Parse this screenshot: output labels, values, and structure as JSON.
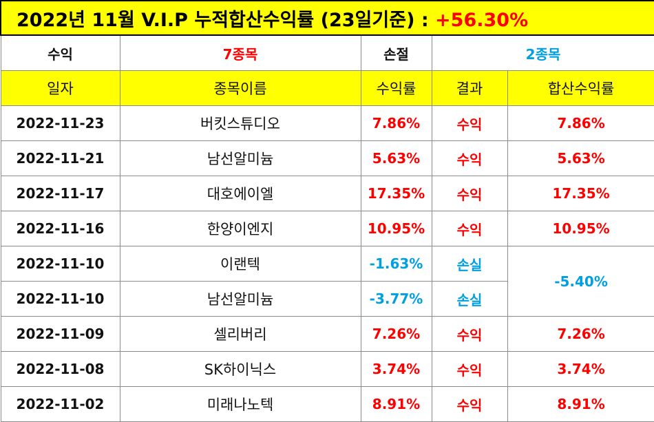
{
  "title": {
    "text": "2022년 11월 V.I.P 누적합산수익률 (23일기준)",
    "separator": ":",
    "value": "+56.30%"
  },
  "summary": {
    "profit_label": "수익",
    "profit_count": "7종목",
    "loss_label": "손절",
    "loss_count": "2종목"
  },
  "headers": {
    "date": "일자",
    "name": "종목이름",
    "return": "수익률",
    "result": "결과",
    "combined": "합산수익률"
  },
  "rows": [
    {
      "date": "2022-11-23",
      "name": "버킷스튜디오",
      "return": "7.86%",
      "result": "수익",
      "combined": "7.86%"
    },
    {
      "date": "2022-11-21",
      "name": "남선알미늄",
      "return": "5.63%",
      "result": "수익",
      "combined": "5.63%"
    },
    {
      "date": "2022-11-17",
      "name": "대호에이엘",
      "return": "17.35%",
      "result": "수익",
      "combined": "17.35%"
    },
    {
      "date": "2022-11-16",
      "name": "한양이엔지",
      "return": "10.95%",
      "result": "수익",
      "combined": "10.95%"
    },
    {
      "date": "2022-11-10",
      "name": "이랜텍",
      "return": "-1.63%",
      "result": "손실",
      "combined": "-5.40%"
    },
    {
      "date": "2022-11-10",
      "name": "남선알미늄",
      "return": "-3.77%",
      "result": "손실"
    },
    {
      "date": "2022-11-09",
      "name": "셀리버리",
      "return": "7.26%",
      "result": "수익",
      "combined": "7.26%"
    },
    {
      "date": "2022-11-08",
      "name": "SK하이닉스",
      "return": "3.74%",
      "result": "수익",
      "combined": "3.74%"
    },
    {
      "date": "2022-11-02",
      "name": "미래나노텍",
      "return": "8.91%",
      "result": "수익",
      "combined": "8.91%"
    }
  ],
  "colors": {
    "header_bg": "#ffff00",
    "profit": "#ff0000",
    "loss": "#00a0e0",
    "border": "#8a8a8a"
  }
}
